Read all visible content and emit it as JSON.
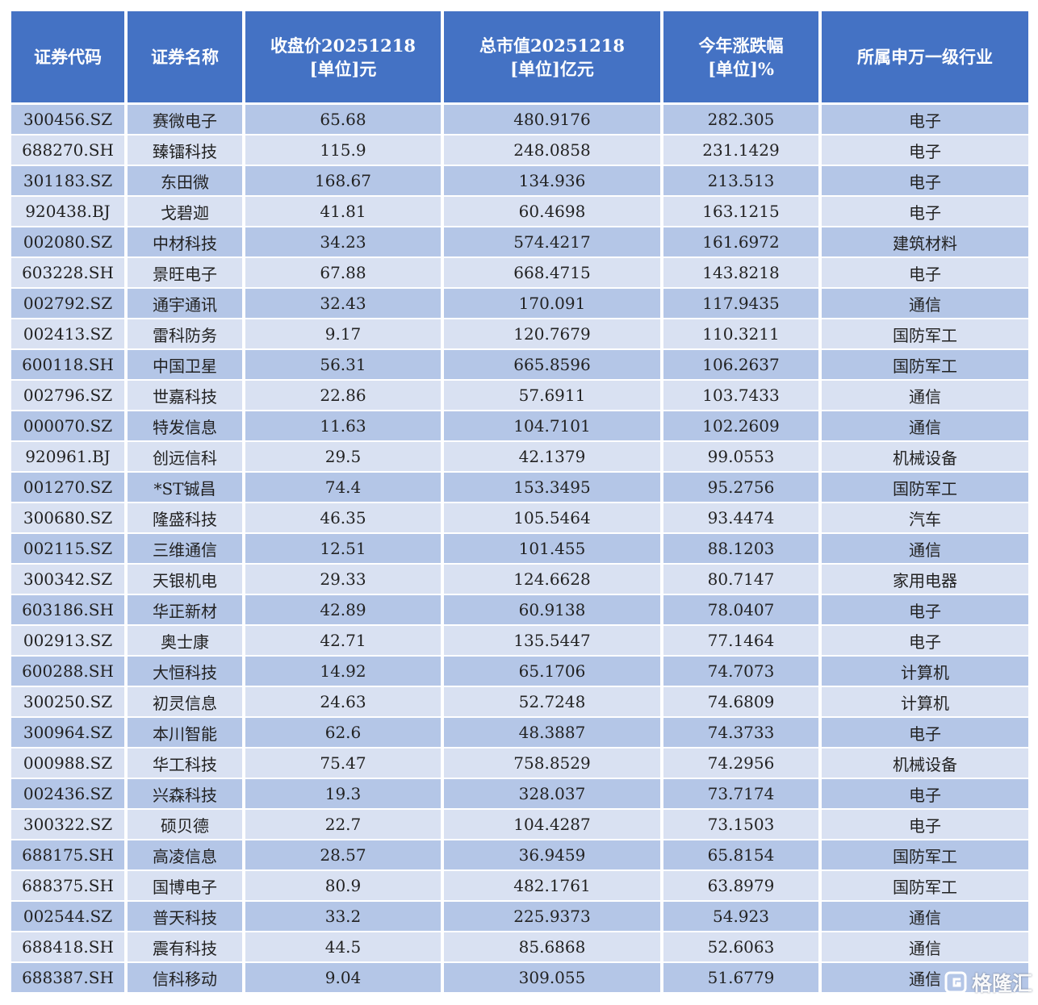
{
  "table": {
    "headers": [
      [
        "证券代码"
      ],
      [
        "证券名称"
      ],
      [
        "收盘价20251218",
        "[单位]元"
      ],
      [
        "总市值20251218",
        "[单位]亿元"
      ],
      [
        "今年涨跌幅",
        "[单位]%"
      ],
      [
        "所属申万一级行业"
      ]
    ],
    "rows": [
      [
        "300456.SZ",
        "赛微电子",
        "65.68",
        "480.9176",
        "282.305",
        "电子"
      ],
      [
        "688270.SH",
        "臻镭科技",
        "115.9",
        "248.0858",
        "231.1429",
        "电子"
      ],
      [
        "301183.SZ",
        "东田微",
        "168.67",
        "134.936",
        "213.513",
        "电子"
      ],
      [
        "920438.BJ",
        "戈碧迦",
        "41.81",
        "60.4698",
        "163.1215",
        "电子"
      ],
      [
        "002080.SZ",
        "中材科技",
        "34.23",
        "574.4217",
        "161.6972",
        "建筑材料"
      ],
      [
        "603228.SH",
        "景旺电子",
        "67.88",
        "668.4715",
        "143.8218",
        "电子"
      ],
      [
        "002792.SZ",
        "通宇通讯",
        "32.43",
        "170.091",
        "117.9435",
        "通信"
      ],
      [
        "002413.SZ",
        "雷科防务",
        "9.17",
        "120.7679",
        "110.3211",
        "国防军工"
      ],
      [
        "600118.SH",
        "中国卫星",
        "56.31",
        "665.8596",
        "106.2637",
        "国防军工"
      ],
      [
        "002796.SZ",
        "世嘉科技",
        "22.86",
        "57.6911",
        "103.7433",
        "通信"
      ],
      [
        "000070.SZ",
        "特发信息",
        "11.63",
        "104.7101",
        "102.2609",
        "通信"
      ],
      [
        "920961.BJ",
        "创远信科",
        "29.5",
        "42.1379",
        "99.0553",
        "机械设备"
      ],
      [
        "001270.SZ",
        "*ST铖昌",
        "74.4",
        "153.3495",
        "95.2756",
        "国防军工"
      ],
      [
        "300680.SZ",
        "隆盛科技",
        "46.35",
        "105.5464",
        "93.4474",
        "汽车"
      ],
      [
        "002115.SZ",
        "三维通信",
        "12.51",
        "101.455",
        "88.1203",
        "通信"
      ],
      [
        "300342.SZ",
        "天银机电",
        "29.33",
        "124.6628",
        "80.7147",
        "家用电器"
      ],
      [
        "603186.SH",
        "华正新材",
        "42.89",
        "60.9138",
        "78.0407",
        "电子"
      ],
      [
        "002913.SZ",
        "奥士康",
        "42.71",
        "135.5447",
        "77.1464",
        "电子"
      ],
      [
        "600288.SH",
        "大恒科技",
        "14.92",
        "65.1706",
        "74.7073",
        "计算机"
      ],
      [
        "300250.SZ",
        "初灵信息",
        "24.63",
        "52.7248",
        "74.6809",
        "计算机"
      ],
      [
        "300964.SZ",
        "本川智能",
        "62.6",
        "48.3887",
        "74.3733",
        "电子"
      ],
      [
        "000988.SZ",
        "华工科技",
        "75.47",
        "758.8529",
        "74.2956",
        "机械设备"
      ],
      [
        "002436.SZ",
        "兴森科技",
        "19.3",
        "328.037",
        "73.7174",
        "电子"
      ],
      [
        "300322.SZ",
        "硕贝德",
        "22.7",
        "104.4287",
        "73.1503",
        "电子"
      ],
      [
        "688175.SH",
        "高凌信息",
        "28.57",
        "36.9459",
        "65.8154",
        "国防军工"
      ],
      [
        "688375.SH",
        "国博电子",
        "80.9",
        "482.1761",
        "63.8979",
        "国防军工"
      ],
      [
        "002544.SZ",
        "普天科技",
        "33.2",
        "225.9373",
        "54.923",
        "通信"
      ],
      [
        "688418.SH",
        "震有科技",
        "44.5",
        "85.6868",
        "52.6063",
        "通信"
      ],
      [
        "688387.SH",
        "信科移动",
        "9.04",
        "309.055",
        "51.6779",
        "通信"
      ]
    ]
  },
  "watermark": {
    "text": "格隆汇",
    "icon": "gelonghui-logo-icon"
  }
}
